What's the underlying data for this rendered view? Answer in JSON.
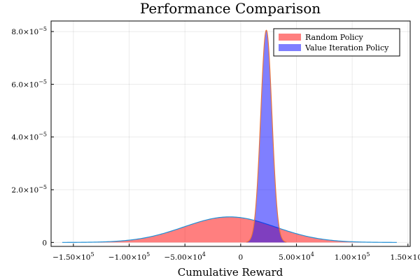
{
  "chart_data": {
    "type": "area",
    "title": "Performance Comparison",
    "xlabel": "Cumulative Reward",
    "ylabel": "",
    "xlim": [
      -170000,
      152000
    ],
    "ylim": [
      -1.5e-06,
      8.4e-05
    ],
    "grid": true,
    "legend_position": "top-right",
    "x_ticks": [
      {
        "value": -150000,
        "label": "−1.50×10",
        "exp": "5"
      },
      {
        "value": -100000,
        "label": "−1.00×10",
        "exp": "5"
      },
      {
        "value": -50000,
        "label": "−5.00×10",
        "exp": "4"
      },
      {
        "value": 0,
        "label": "0",
        "exp": ""
      },
      {
        "value": 50000,
        "label": "5.00×10",
        "exp": "4"
      },
      {
        "value": 100000,
        "label": "1.00×10",
        "exp": "5"
      },
      {
        "value": 150000,
        "label": "1.50×10",
        "exp": "5"
      }
    ],
    "y_ticks": [
      {
        "value": 0,
        "label": "0",
        "exp": ""
      },
      {
        "value": 2e-05,
        "label": "2.0×10",
        "exp": "−5"
      },
      {
        "value": 4e-05,
        "label": "4.0×10",
        "exp": "−5"
      },
      {
        "value": 6e-05,
        "label": "6.0×10",
        "exp": "−5"
      },
      {
        "value": 8e-05,
        "label": "8.0×10",
        "exp": "−5"
      }
    ],
    "series": [
      {
        "name": "Random Policy",
        "fill_color": "#ff0000",
        "fill_opacity": 0.5,
        "line_color": "#1f8fd6",
        "distribution": {
          "mean": -10000,
          "sd": 41000,
          "peak": 9.7e-06
        },
        "x_range": [
          -160000,
          140000
        ]
      },
      {
        "name": "Value Iteration Policy",
        "fill_color": "#0000ff",
        "fill_opacity": 0.5,
        "line_color": "#e8743b",
        "distribution": {
          "mean": 23000,
          "sd": 5000,
          "peak": 8.05e-05
        },
        "x_range": [
          5000,
          41000
        ]
      }
    ]
  }
}
